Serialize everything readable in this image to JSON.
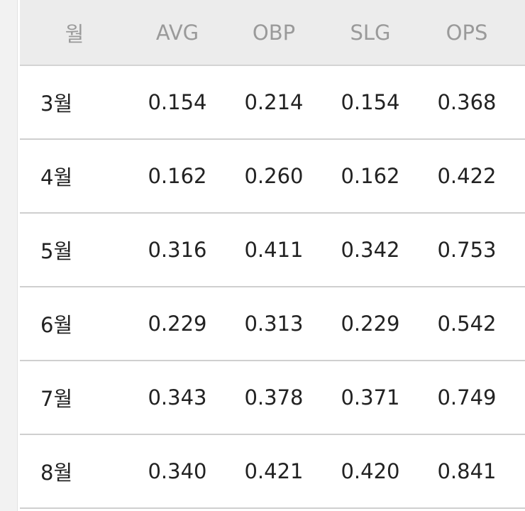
{
  "table": {
    "header": [
      "월",
      "AVG",
      "OBP",
      "SLG",
      "OPS"
    ],
    "rows": [
      [
        "3월",
        "0.154",
        "0.214",
        "0.154",
        "0.368"
      ],
      [
        "4월",
        "0.162",
        "0.260",
        "0.162",
        "0.422"
      ],
      [
        "5월",
        "0.316",
        "0.411",
        "0.342",
        "0.753"
      ],
      [
        "6월",
        "0.229",
        "0.313",
        "0.229",
        "0.542"
      ],
      [
        "7월",
        "0.343",
        "0.378",
        "0.371",
        "0.749"
      ],
      [
        "8월",
        "0.340",
        "0.421",
        "0.420",
        "0.841"
      ]
    ]
  }
}
